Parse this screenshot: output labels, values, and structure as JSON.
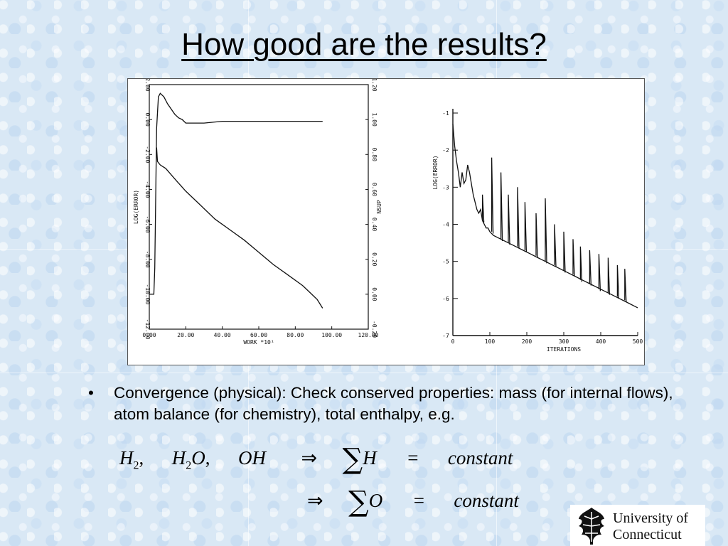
{
  "slide": {
    "title": "How good are the results?",
    "bullet": "Convergence (physical): Check conserved properties: mass (for internal flows), atom balance (for chemistry), total enthalpy, e.g.",
    "bullet_marker": "•"
  },
  "equations": {
    "line1_lhs_parts": [
      "H",
      "2",
      ",",
      "H",
      "2",
      "O",
      ",",
      "OH"
    ],
    "implies": "⇒",
    "sigma": "∑",
    "line1_var": "H",
    "line2_var": "O",
    "equals": "=",
    "constant": "constant"
  },
  "logo": {
    "line1": "University of",
    "line2": "Connecticut",
    "icon": "oak-leaf-icon"
  },
  "chart_data": [
    {
      "type": "line",
      "title": "",
      "xlabel": "WORK *10¹",
      "ylabel_left": "LOG(ERROR)",
      "ylabel_right": "NSUP",
      "xlim": [
        0,
        120
      ],
      "ylim_left": [
        -12,
        2
      ],
      "ylim_right": [
        -0.2,
        1.2
      ],
      "x_ticks": [
        "0.00",
        "20.00",
        "40.00",
        "60.00",
        "80.00",
        "100.00",
        "120.00"
      ],
      "y_ticks_left": [
        "2.00",
        "0.00",
        "-2.00",
        "-4.00",
        "-6.00",
        "-8.00",
        "-10.00",
        "-12.00"
      ],
      "y_ticks_right": [
        "1.20",
        "1.00",
        "0.80",
        "0.60",
        "0.40",
        "0.20",
        "0.00",
        "-0.20"
      ],
      "series": [
        {
          "axis": "left",
          "x": [
            4,
            4.5,
            6,
            9,
            14,
            20,
            28,
            36,
            44,
            52,
            60,
            68,
            76,
            84,
            88,
            92,
            95
          ],
          "y": [
            -1.6,
            -2.4,
            -2.6,
            -2.8,
            -3.4,
            -4.1,
            -4.9,
            -5.7,
            -6.3,
            -6.9,
            -7.6,
            -8.3,
            -8.9,
            -9.5,
            -9.9,
            -10.3,
            -10.8
          ]
        },
        {
          "axis": "right",
          "x": [
            0,
            2.5,
            3,
            4,
            5,
            6,
            8,
            10,
            12,
            14,
            16,
            18,
            20,
            30,
            40,
            60,
            80,
            95
          ],
          "y": [
            0,
            0,
            0.15,
            0.95,
            1.13,
            1.15,
            1.13,
            1.09,
            1.06,
            1.03,
            1.01,
            1.0,
            0.98,
            0.98,
            0.99,
            0.99,
            0.99,
            0.99
          ]
        }
      ]
    },
    {
      "type": "line",
      "title": "",
      "xlabel": "ITERATIONS",
      "ylabel": "LOG(ERROR)",
      "xlim": [
        0,
        500
      ],
      "ylim": [
        -7,
        -1
      ],
      "x_ticks": [
        "0",
        "100",
        "200",
        "300",
        "400",
        "500"
      ],
      "y_ticks": [
        "-1",
        "-2",
        "-3",
        "-4",
        "-5",
        "-6",
        "-7"
      ],
      "series": [
        {
          "x": [
            0,
            5,
            10,
            15,
            20,
            25,
            30,
            35,
            40,
            45,
            50,
            55,
            60,
            65,
            70,
            75,
            80,
            85,
            90,
            95,
            100,
            110,
            130,
            150,
            170,
            190,
            210,
            230,
            250,
            270,
            290,
            310,
            330,
            350,
            370,
            390,
            410,
            430,
            450,
            470,
            490,
            500
          ],
          "y": [
            -1.3,
            -1.9,
            -2.3,
            -2.6,
            -3.0,
            -2.6,
            -2.9,
            -2.8,
            -2.4,
            -2.6,
            -2.9,
            -3.2,
            -3.4,
            -3.6,
            -3.7,
            -3.6,
            -3.9,
            -4.0,
            -4.1,
            -4.1,
            -4.2,
            -4.3,
            -4.4,
            -4.5,
            -4.6,
            -4.7,
            -4.8,
            -4.9,
            -5.0,
            -5.1,
            -5.2,
            -5.3,
            -5.4,
            -5.5,
            -5.6,
            -5.7,
            -5.8,
            -5.9,
            -6.0,
            -6.1,
            -6.2,
            -6.25
          ]
        }
      ],
      "spikes": [
        {
          "x": 80,
          "base": -3.9,
          "peak": -3.2
        },
        {
          "x": 105,
          "base": -4.2,
          "peak": -2.2
        },
        {
          "x": 130,
          "base": -4.4,
          "peak": -2.6
        },
        {
          "x": 150,
          "base": -4.5,
          "peak": -3.2
        },
        {
          "x": 175,
          "base": -4.6,
          "peak": -3.0
        },
        {
          "x": 195,
          "base": -4.7,
          "peak": -3.4
        },
        {
          "x": 225,
          "base": -4.85,
          "peak": -3.7
        },
        {
          "x": 250,
          "base": -5.0,
          "peak": -3.3
        },
        {
          "x": 275,
          "base": -5.1,
          "peak": -4.0
        },
        {
          "x": 300,
          "base": -5.25,
          "peak": -4.2
        },
        {
          "x": 325,
          "base": -5.35,
          "peak": -4.4
        },
        {
          "x": 345,
          "base": -5.5,
          "peak": -4.6
        },
        {
          "x": 370,
          "base": -5.6,
          "peak": -4.7
        },
        {
          "x": 395,
          "base": -5.75,
          "peak": -4.8
        },
        {
          "x": 420,
          "base": -5.85,
          "peak": -4.9
        },
        {
          "x": 445,
          "base": -5.95,
          "peak": -5.1
        },
        {
          "x": 465,
          "base": -6.05,
          "peak": -5.2
        }
      ]
    }
  ]
}
